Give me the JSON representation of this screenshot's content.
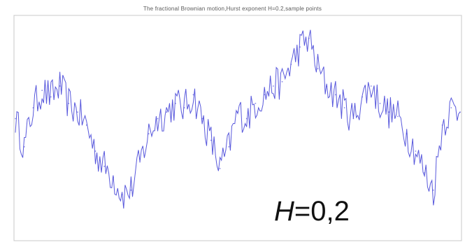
{
  "chart_data": {
    "type": "line",
    "title": "The fractional Brownian motion,Hurst exponent H=0.2,sample points",
    "xlabel": "",
    "ylabel": "",
    "grid": false,
    "series_color": "#3b3bd6",
    "annotation": {
      "variable": "H",
      "value": "=0,2"
    },
    "x": [
      0,
      0.02,
      0.04,
      0.06,
      0.08,
      0.1,
      0.12,
      0.14,
      0.16,
      0.18,
      0.2,
      0.22,
      0.24,
      0.26,
      0.28,
      0.3,
      0.32,
      0.34,
      0.36,
      0.38,
      0.4,
      0.42,
      0.44,
      0.46,
      0.48,
      0.5,
      0.52,
      0.54,
      0.56,
      0.58,
      0.6,
      0.62,
      0.64,
      0.66,
      0.68,
      0.7,
      0.72,
      0.74,
      0.76,
      0.78,
      0.8,
      0.82,
      0.84,
      0.86,
      0.88,
      0.9,
      0.92,
      0.94,
      0.96,
      0.98,
      1.0
    ],
    "series": [
      {
        "values": [
          0.55,
          0.42,
          0.6,
          0.68,
          0.65,
          0.7,
          0.62,
          0.58,
          0.52,
          0.4,
          0.33,
          0.28,
          0.2,
          0.22,
          0.35,
          0.48,
          0.55,
          0.58,
          0.62,
          0.6,
          0.66,
          0.55,
          0.45,
          0.32,
          0.42,
          0.58,
          0.55,
          0.62,
          0.66,
          0.7,
          0.72,
          0.8,
          0.88,
          0.92,
          0.78,
          0.7,
          0.66,
          0.6,
          0.55,
          0.65,
          0.7,
          0.62,
          0.58,
          0.56,
          0.48,
          0.4,
          0.3,
          0.22,
          0.52,
          0.6,
          0.58
        ]
      }
    ],
    "xlim": [
      0,
      1
    ],
    "ylim": [
      0,
      1
    ]
  }
}
